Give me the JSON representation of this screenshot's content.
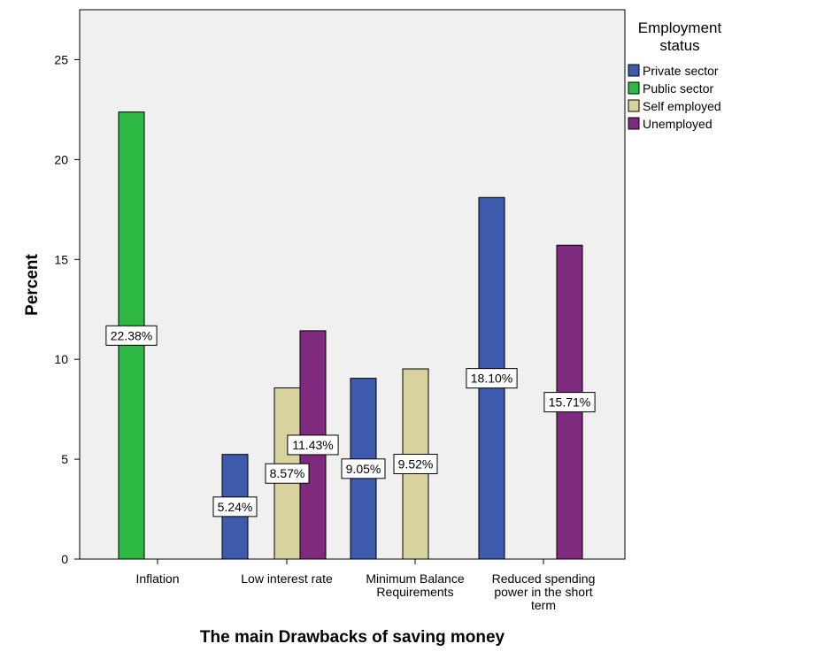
{
  "chart_data": {
    "type": "bar",
    "xlabel": "The main Drawbacks of saving money",
    "ylabel": "Percent",
    "ylim": [
      0,
      27.5
    ],
    "yticks": [
      0,
      5,
      10,
      15,
      20,
      25
    ],
    "grid": false,
    "legend_position": "right",
    "legend_title": [
      "Employment",
      "status"
    ],
    "categories": [
      [
        "Inflation"
      ],
      [
        "Low interest rate"
      ],
      [
        "Minimum Balance",
        "Requirements"
      ],
      [
        "Reduced spending",
        "power in the short",
        "term"
      ]
    ],
    "series": [
      {
        "name": "Private sector",
        "color": "#3d5aad",
        "values": [
          null,
          5.24,
          9.05,
          18.1
        ],
        "labels": [
          null,
          "5.24%",
          "9.05%",
          "18.10%"
        ]
      },
      {
        "name": "Public sector",
        "color": "#2eb844",
        "values": [
          22.38,
          null,
          null,
          null
        ],
        "labels": [
          "22.38%",
          null,
          null,
          null
        ]
      },
      {
        "name": "Self employed",
        "color": "#d8d29e",
        "values": [
          null,
          8.57,
          9.52,
          null
        ],
        "labels": [
          null,
          "8.57%",
          "9.52%",
          null
        ]
      },
      {
        "name": "Unemployed",
        "color": "#7e2a7f",
        "values": [
          null,
          11.43,
          null,
          15.71
        ],
        "labels": [
          null,
          "11.43%",
          null,
          "15.71%"
        ]
      }
    ],
    "plot_background": "#f0f0f0"
  }
}
